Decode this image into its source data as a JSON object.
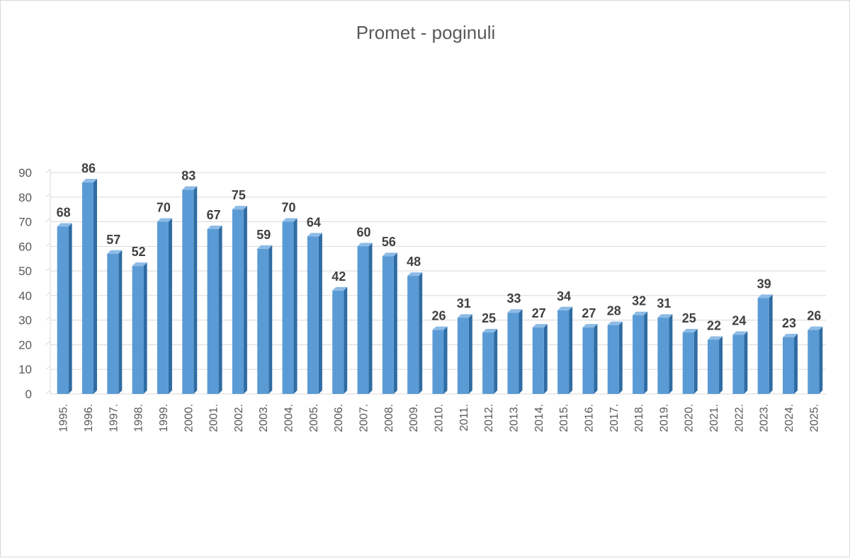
{
  "chart_data": {
    "type": "bar",
    "title": "Promet - poginuli",
    "categories": [
      "1995.",
      "1996.",
      "1997.",
      "1998.",
      "1999.",
      "2000.",
      "2001.",
      "2002.",
      "2003.",
      "2004.",
      "2005.",
      "2006.",
      "2007.",
      "2008.",
      "2009.",
      "2010.",
      "2011.",
      "2012.",
      "2013.",
      "2014.",
      "2015.",
      "2016.",
      "2017.",
      "2018.",
      "2019.",
      "2020.",
      "2021.",
      "2022.",
      "2023.",
      "2024.",
      "2025."
    ],
    "values": [
      68,
      86,
      57,
      52,
      70,
      83,
      67,
      75,
      59,
      70,
      64,
      42,
      60,
      56,
      48,
      26,
      31,
      25,
      33,
      27,
      34,
      27,
      28,
      32,
      31,
      25,
      22,
      24,
      39,
      23,
      26
    ],
    "ylim": [
      0,
      90
    ],
    "yticks": [
      0,
      10,
      20,
      30,
      40,
      50,
      60,
      70,
      80,
      90
    ],
    "grid": true,
    "legend": "none",
    "colors": {
      "bar": "#5b9bd5",
      "bar_side": "#2f6ca3",
      "bar_top": "#8dbbe6",
      "grid": "#d9d9d9"
    }
  }
}
